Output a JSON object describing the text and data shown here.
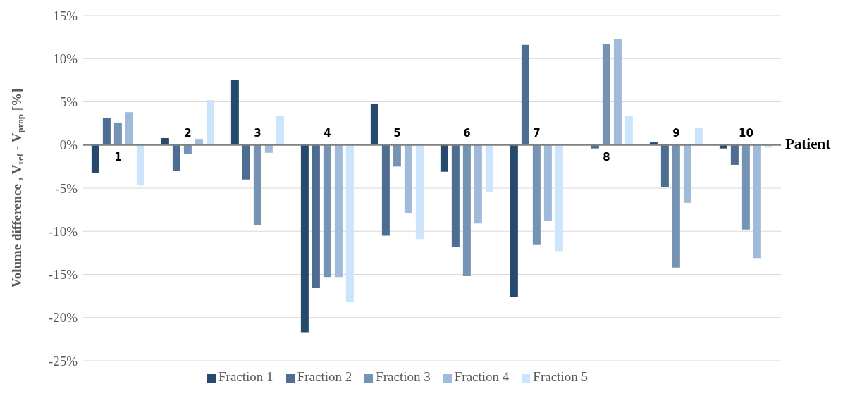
{
  "chart_data": {
    "type": "bar",
    "xlabel": "Patient",
    "ylabel": "Volume difference , V$_{ref}$ - V$_{prop}$  [%]",
    "categories": [
      "1",
      "2",
      "3",
      "4",
      "5",
      "6",
      "7",
      "8",
      "9",
      "10"
    ],
    "series": [
      {
        "name": "Fraction 1",
        "color": "#264a6e",
        "values": [
          -3.2,
          0.8,
          7.5,
          -21.7,
          4.8,
          -3.1,
          -17.6,
          0,
          0.3,
          -0.4
        ]
      },
      {
        "name": "Fraction 2",
        "color": "#4d6d92",
        "values": [
          3.1,
          -3.0,
          -4.0,
          -16.6,
          -10.5,
          -11.8,
          11.6,
          -0.4,
          -4.9,
          -2.3
        ]
      },
      {
        "name": "Fraction 3",
        "color": "#7594b4",
        "values": [
          2.6,
          -1.0,
          -9.3,
          -15.3,
          -2.5,
          -15.2,
          -11.6,
          11.7,
          -14.2,
          -9.8
        ]
      },
      {
        "name": "Fraction 4",
        "color": "#a0bada",
        "values": [
          3.8,
          0.7,
          -0.9,
          -15.3,
          -7.9,
          -9.1,
          -8.8,
          12.3,
          -6.7,
          -13.1
        ]
      },
      {
        "name": "Fraction 5",
        "color": "#cce4fc",
        "values": [
          -4.7,
          5.2,
          3.4,
          -18.2,
          -10.9,
          -5.4,
          -12.3,
          3.4,
          2.0,
          -0.3
        ]
      }
    ],
    "ylim": [
      -25,
      15
    ],
    "yticks": [
      {
        "value": -25,
        "label": "-25%"
      },
      {
        "value": -20,
        "label": "-20%"
      },
      {
        "value": -15,
        "label": "-15%"
      },
      {
        "value": -10,
        "label": "-10%"
      },
      {
        "value": -5,
        "label": "-5%"
      },
      {
        "value": 0,
        "label": "0%"
      },
      {
        "value": 5,
        "label": "5%"
      },
      {
        "value": 10,
        "label": "10%"
      },
      {
        "value": 15,
        "label": "15%"
      }
    ],
    "grid": "y",
    "legend": "bottom"
  }
}
